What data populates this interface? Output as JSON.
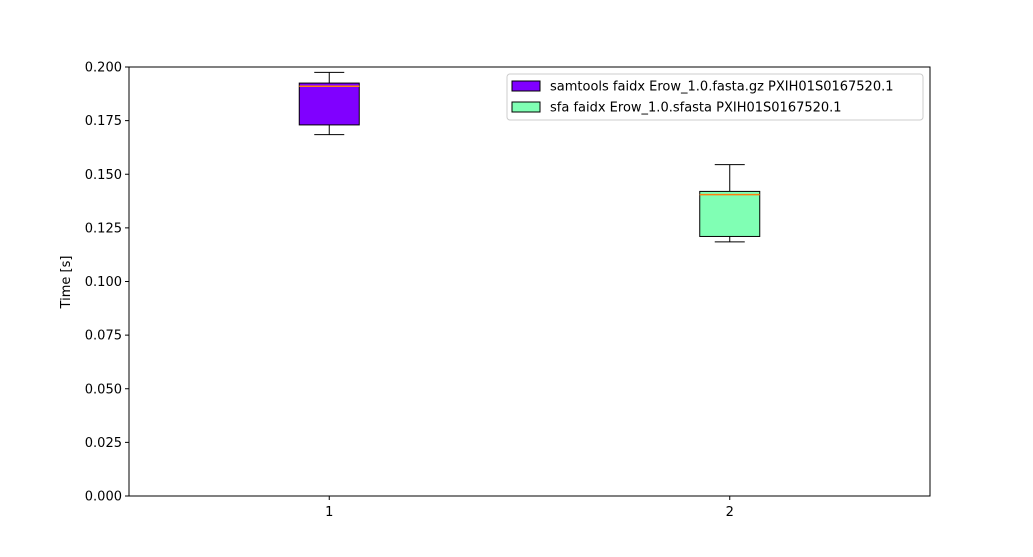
{
  "chart_data": {
    "type": "box",
    "title": "",
    "xlabel": "",
    "ylabel": "Time [s]",
    "ylim": [
      0.0,
      0.2
    ],
    "xlim": [
      0.5,
      2.5
    ],
    "yticks": [
      "0.000",
      "0.025",
      "0.050",
      "0.075",
      "0.100",
      "0.125",
      "0.150",
      "0.175",
      "0.200"
    ],
    "xticks": [
      "1",
      "2"
    ],
    "grid": false,
    "legend_position": "top-right",
    "median_color": "#ff7f0e",
    "series": [
      {
        "name": "samtools faidx Erow_1.0.fasta.gz PXIH01S0167520.1",
        "x": 1,
        "color": "#8000ff",
        "whisker_low": 0.1685,
        "q1": 0.173,
        "median": 0.191,
        "q3": 0.1925,
        "whisker_high": 0.1975
      },
      {
        "name": "sfa faidx Erow_1.0.sfasta PXIH01S0167520.1",
        "x": 2,
        "color": "#80ffb4",
        "whisker_low": 0.1185,
        "q1": 0.121,
        "median": 0.1405,
        "q3": 0.142,
        "whisker_high": 0.1545
      }
    ]
  }
}
